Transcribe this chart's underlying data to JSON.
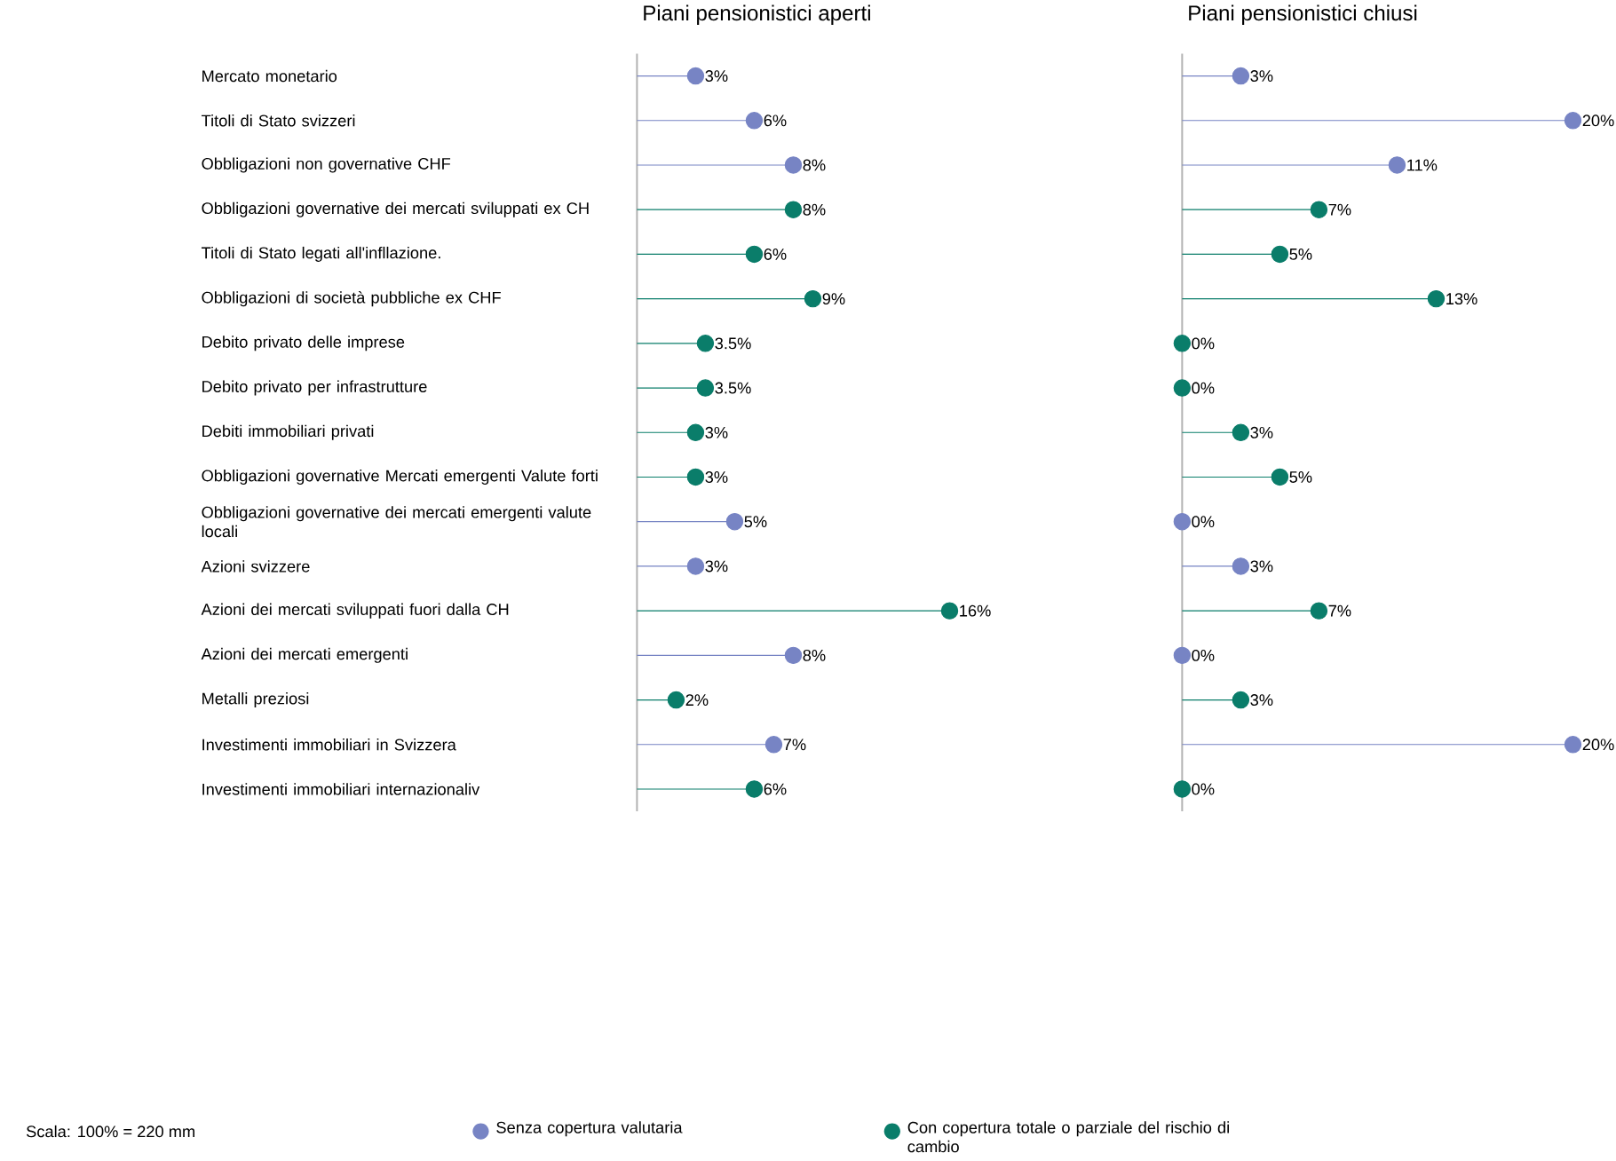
{
  "chart_data": [
    {
      "type": "lollipop",
      "title": "Piani pensionistici aperti",
      "orientation": "horizontal",
      "marker": "circle",
      "legend": "bottom",
      "tick_labels": "y",
      "categories": [
        "Mercato monetario",
        "Titoli di Stato svizzeri",
        "Obbligazioni non governative CHF",
        "Obbligazioni governative dei mercati sviluppati ex CH",
        "Titoli di Stato legati all'infllazione.",
        "Obbligazioni di società pubbliche ex CHF",
        "Debito privato delle imprese",
        "Debito privato per infrastrutture",
        "Debiti immobiliari privati",
        "Obbligazioni governative Mercati emergenti Valute forti",
        "Obbligazioni governative dei mercati emergenti valute locali",
        "Azioni svizzere",
        "Azioni dei mercati sviluppati fuori dalla CH",
        "Azioni dei mercati emergenti",
        "Metalli preziosi",
        "Investimenti immobiliari in Svizzera",
        "Investimenti immobiliari internazionaliv"
      ],
      "series": [
        {
          "name": "Senza copertura valutaria",
          "color": "#7784c4",
          "values": [
            3,
            6,
            8,
            null,
            null,
            null,
            null,
            null,
            null,
            null,
            5,
            3,
            null,
            8,
            null,
            7,
            null
          ],
          "value_labels": [
            "3%",
            "6%",
            "8%",
            null,
            null,
            null,
            null,
            null,
            null,
            null,
            "5%",
            "3%",
            null,
            "8%",
            null,
            "7%",
            null
          ]
        },
        {
          "name": "Con copertura totale o parziale del rischio di cambio",
          "color": "#0a7d6a",
          "values": [
            null,
            null,
            null,
            8,
            6,
            9,
            3.5,
            3.5,
            3,
            3,
            null,
            null,
            16,
            null,
            2,
            null,
            6
          ],
          "value_labels": [
            null,
            null,
            null,
            "8%",
            "6%",
            "9%",
            "3.5%",
            "3.5%",
            "3%",
            "3%",
            null,
            null,
            "16%",
            null,
            "2%",
            null,
            "6%"
          ]
        }
      ],
      "annotations": [
        "Scala: 100% = 220 mm"
      ]
    },
    {
      "type": "lollipop",
      "title": "Piani pensionistici chiusi",
      "orientation": "horizontal",
      "marker": "circle",
      "tick_labels": false,
      "categories": [
        null,
        null,
        null,
        null,
        null,
        null,
        null,
        null,
        null,
        null,
        null,
        null,
        null,
        null,
        null,
        null,
        null
      ],
      "series": [
        {
          "color": "#7784c4",
          "values": [
            3,
            20,
            11,
            null,
            null,
            null,
            null,
            null,
            null,
            null,
            0,
            3,
            null,
            0,
            null,
            20,
            null
          ],
          "value_labels": [
            "3%",
            "20%",
            "11%",
            null,
            null,
            null,
            null,
            null,
            null,
            null,
            "0%",
            "3%",
            null,
            "0%",
            null,
            "20%",
            null
          ]
        },
        {
          "color": "#0a7d6a",
          "values": [
            null,
            null,
            null,
            7,
            5,
            13,
            0,
            0,
            3,
            5,
            null,
            null,
            7,
            null,
            3,
            null,
            0
          ],
          "value_labels": [
            null,
            null,
            null,
            "7%",
            "5%",
            "13%",
            "0%",
            "0%",
            "3%",
            "5%",
            null,
            null,
            "7%",
            null,
            "3%",
            null,
            "0%"
          ]
        }
      ]
    }
  ]
}
